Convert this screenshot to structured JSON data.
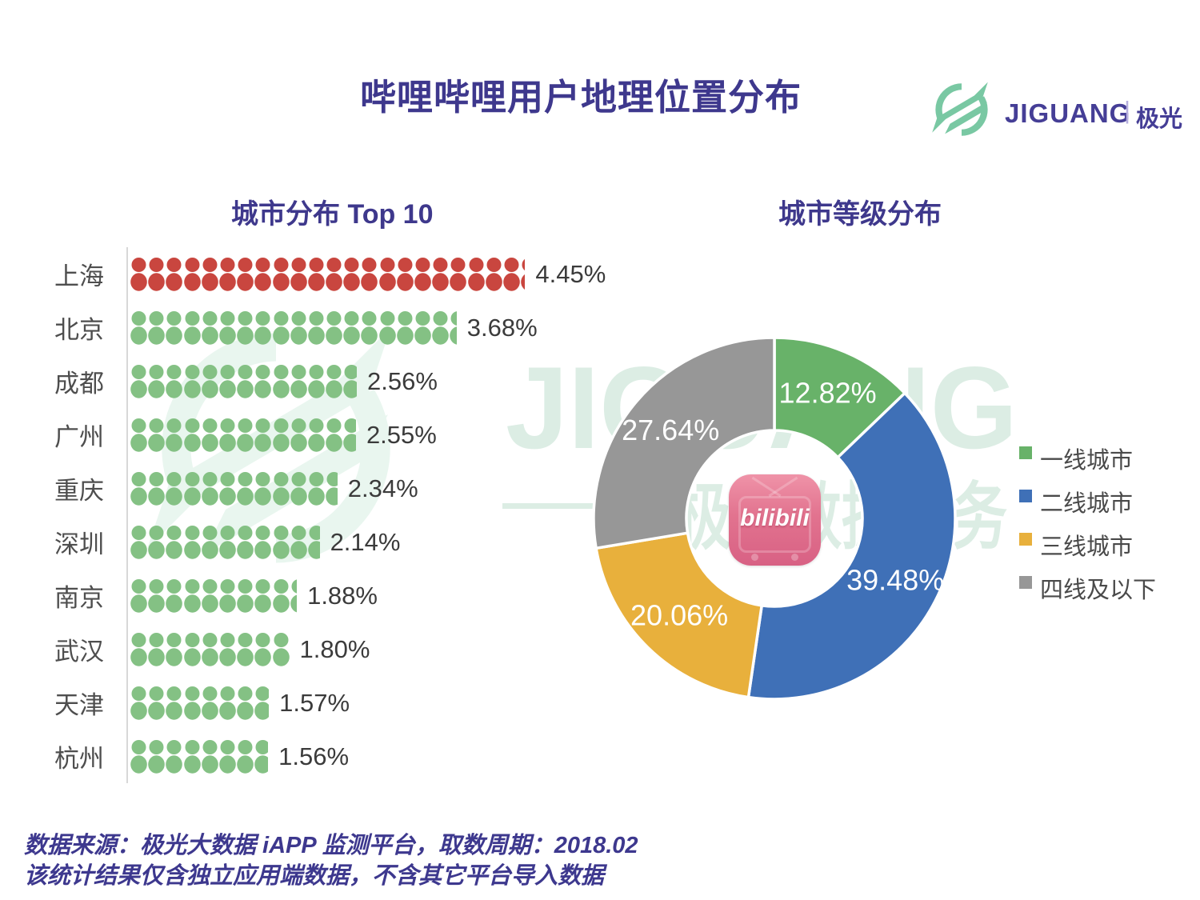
{
  "header": {
    "title": "哔哩哔哩用户地理位置分布",
    "logo": {
      "brand": "JIGUANG",
      "divider": "|",
      "brand_cn": "极光"
    }
  },
  "watermark": {
    "text_en": "JIGUANG",
    "dash": "——",
    "text_cn": "极光数据服务"
  },
  "center_icon": {
    "label": "bilibili"
  },
  "chart_data": [
    {
      "type": "bar",
      "variant": "pictogram",
      "title": "城市分布 Top 10",
      "categories": [
        "上海",
        "北京",
        "成都",
        "广州",
        "重庆",
        "深圳",
        "南京",
        "武汉",
        "天津",
        "杭州"
      ],
      "values": [
        4.45,
        3.68,
        2.56,
        2.55,
        2.34,
        2.14,
        1.88,
        1.8,
        1.57,
        1.56
      ],
      "value_labels": [
        "4.45%",
        "3.68%",
        "2.56%",
        "2.55%",
        "2.34%",
        "2.14%",
        "1.88%",
        "1.80%",
        "1.57%",
        "1.56%"
      ],
      "unit": "%",
      "icon": "person-icon",
      "icon_unit_percent": 0.2,
      "highlight_category": "上海",
      "highlight_color": "#c9463f",
      "base_color": "#84c184",
      "axis_line_color": "#d8d8d8",
      "xlabel": "",
      "ylabel": ""
    },
    {
      "type": "pie",
      "variant": "donut",
      "title": "城市等级分布",
      "categories": [
        "一线城市",
        "二线城市",
        "三线城市",
        "四线及以下"
      ],
      "values": [
        12.82,
        39.48,
        20.06,
        27.64
      ],
      "value_labels": [
        "12.82%",
        "39.48%",
        "20.06%",
        "27.64%"
      ],
      "colors": [
        "#68b269",
        "#3f70b7",
        "#e8b03c",
        "#979797"
      ],
      "start_angle_deg": 0,
      "clockwise": true,
      "inner_radius_ratio": 0.487,
      "legend_position": "right",
      "center_icon": "bilibili-app-icon"
    }
  ],
  "footer": {
    "line1": "数据来源：极光大数据 iAPP 监测平台，取数周期：2018.02",
    "line2": "该统计结果仅含独立应用端数据，不含其它平台导入数据"
  },
  "colors": {
    "title": "#3e388d",
    "watermark": "#8cc5a4",
    "brand_green": "#79c8a3",
    "brand_purple": "#453e96"
  }
}
